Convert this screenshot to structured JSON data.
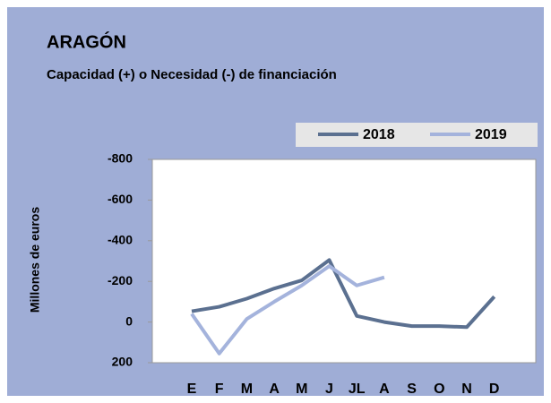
{
  "chart_data": {
    "type": "line",
    "title": "ARAGÓN",
    "subtitle": "Capacidad (+) o Necesidad (-) de financiación",
    "y_label": "Millones de euros",
    "categories": [
      "E",
      "F",
      "M",
      "A",
      "M",
      "J",
      "JL",
      "A",
      "S",
      "O",
      "N",
      "D"
    ],
    "series": [
      {
        "name": "2018",
        "color": "#5b7090",
        "values": [
          -53,
          -75,
          -115,
          -165,
          -205,
          -305,
          -30,
          0,
          20,
          20,
          25,
          -125
        ]
      },
      {
        "name": "2019",
        "color": "#a4b3dc",
        "values": [
          -40,
          155,
          -15,
          -100,
          -180,
          -275,
          -180,
          -220,
          null,
          null,
          null,
          null
        ]
      }
    ],
    "ylim": [
      200,
      -800
    ],
    "yticks": [
      -800,
      -600,
      -400,
      -200,
      0,
      200
    ],
    "grid": false,
    "legend": "top-right"
  }
}
